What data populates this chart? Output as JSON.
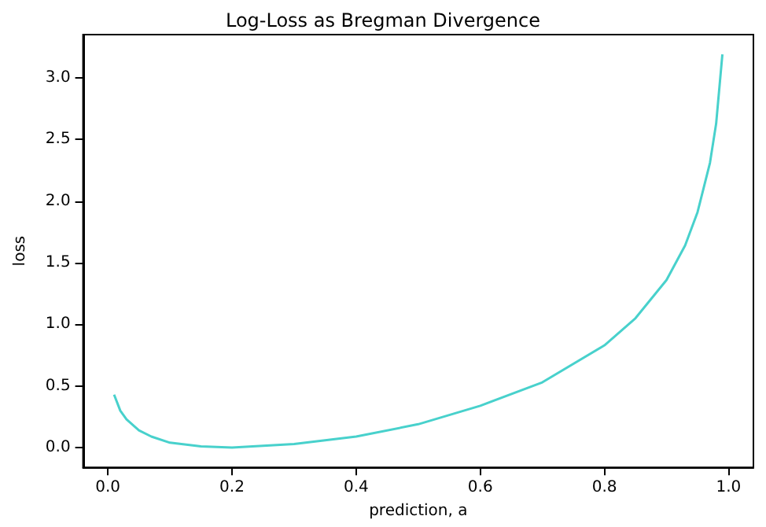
{
  "chart_data": {
    "type": "line",
    "title": "Log-Loss as Bregman Divergence",
    "xlabel": "prediction, a",
    "ylabel": "loss",
    "x": [
      0.01,
      0.02,
      0.03,
      0.05,
      0.07,
      0.1,
      0.15,
      0.2,
      0.3,
      0.4,
      0.5,
      0.6,
      0.7,
      0.8,
      0.85,
      0.9,
      0.93,
      0.95,
      0.97,
      0.98,
      0.99
    ],
    "series": [
      {
        "color": "#48d1cc",
        "values": [
          0.43,
          0.3,
          0.23,
          0.14,
          0.09,
          0.04,
          0.01,
          0,
          0.03,
          0.09,
          0.19,
          0.34,
          0.53,
          0.83,
          1.05,
          1.36,
          1.64,
          1.91,
          2.31,
          2.63,
          3.19
        ]
      }
    ],
    "xlim": [
      -0.04,
      1.04
    ],
    "xticks": [
      {
        "value": 0,
        "label": "0.0"
      },
      0.2,
      0.4,
      0.6,
      0.8,
      {
        "value": 1,
        "label": "1.0"
      }
    ],
    "ylim": [
      -0.16,
      3.35
    ],
    "yticks": [
      {
        "value": 0,
        "label": "0.0"
      },
      0.5,
      {
        "value": 1,
        "label": "1.0"
      },
      1.5,
      {
        "value": 2,
        "label": "2.0"
      },
      2.5,
      {
        "value": 3,
        "label": "3.0"
      }
    ],
    "grid": false,
    "marker": "none",
    "line_style": "solid"
  }
}
